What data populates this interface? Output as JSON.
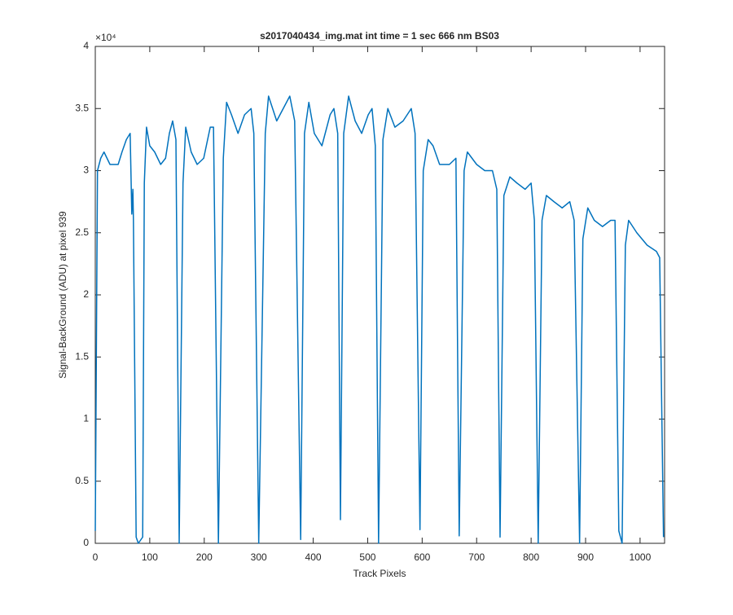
{
  "chart_data": {
    "type": "line",
    "title": "s2017040434_img.mat int time = 1 sec  666 nm BS03",
    "x_label": "Track Pixels",
    "y_label": "Signal-BackGround (ADU) at pixel 939",
    "y_exponent_label": "×10⁴",
    "x": [
      0,
      4,
      10,
      16,
      27,
      42,
      49,
      57,
      64,
      67,
      69,
      70,
      75,
      79,
      87,
      90,
      94,
      100,
      109,
      120,
      129,
      136,
      142,
      148,
      154,
      161,
      166,
      176,
      187,
      199,
      211,
      217,
      226,
      235,
      241,
      250,
      262,
      274,
      286,
      291,
      300,
      312,
      318,
      333,
      345,
      357,
      366,
      377,
      384,
      392,
      402,
      416,
      431,
      438,
      445,
      450,
      456,
      465,
      477,
      489,
      501,
      508,
      514,
      520,
      528,
      537,
      550,
      565,
      580,
      587,
      596,
      602,
      611,
      620,
      632,
      650,
      662,
      668,
      677,
      683,
      700,
      715,
      729,
      737,
      743,
      750,
      761,
      774,
      789,
      800,
      806,
      813,
      820,
      828,
      842,
      857,
      871,
      879,
      889,
      895,
      904,
      916,
      931,
      946,
      954,
      961,
      967,
      973,
      979,
      994,
      1013,
      1030,
      1036,
      1043
    ],
    "series": [
      {
        "name": "signal",
        "color": "#0072bd",
        "values": [
          0.1,
          3.0,
          3.1,
          3.15,
          3.05,
          3.05,
          3.15,
          3.25,
          3.3,
          2.65,
          2.85,
          2.6,
          0.05,
          0,
          0.05,
          2.9,
          3.35,
          3.2,
          3.15,
          3.05,
          3.1,
          3.3,
          3.4,
          3.25,
          0,
          2.9,
          3.35,
          3.15,
          3.05,
          3.1,
          3.35,
          3.35,
          0,
          3.1,
          3.55,
          3.45,
          3.3,
          3.45,
          3.5,
          3.3,
          0,
          3.3,
          3.6,
          3.4,
          3.5,
          3.6,
          3.4,
          0.03,
          3.3,
          3.55,
          3.3,
          3.2,
          3.45,
          3.5,
          3.3,
          0.19,
          3.3,
          3.6,
          3.4,
          3.3,
          3.45,
          3.5,
          3.2,
          0,
          3.25,
          3.5,
          3.35,
          3.4,
          3.5,
          3.3,
          0.11,
          3.0,
          3.25,
          3.2,
          3.05,
          3.05,
          3.1,
          0.06,
          3.0,
          3.15,
          3.05,
          3.0,
          3.0,
          2.85,
          0.05,
          2.8,
          2.95,
          2.9,
          2.85,
          2.9,
          2.6,
          0,
          2.6,
          2.8,
          2.75,
          2.7,
          2.75,
          2.6,
          0,
          2.45,
          2.7,
          2.6,
          2.55,
          2.6,
          2.6,
          0.1,
          0,
          2.4,
          2.6,
          2.5,
          2.4,
          2.35,
          2.3,
          0.05
        ]
      }
    ],
    "xlim": [
      0,
      1045
    ],
    "xticks": [
      0,
      100,
      200,
      300,
      400,
      500,
      600,
      700,
      800,
      900,
      1000
    ],
    "ylim": [
      0,
      4
    ],
    "yticks": [
      0,
      0.5,
      1,
      1.5,
      2,
      2.5,
      3,
      3.5,
      4
    ]
  }
}
